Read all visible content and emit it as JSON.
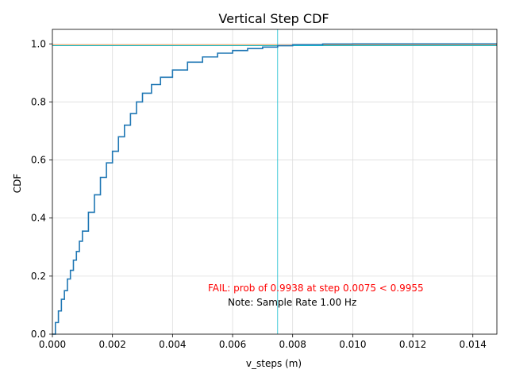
{
  "chart_data": {
    "type": "line",
    "title": "Vertical Step CDF",
    "xlabel": "v_steps (m)",
    "ylabel": "CDF",
    "xlim": [
      0,
      0.0148
    ],
    "ylim": [
      0,
      1.05
    ],
    "grid": true,
    "x_ticks": [
      0,
      0.002,
      0.004,
      0.006,
      0.008,
      0.01,
      0.012,
      0.014
    ],
    "x_tick_labels": [
      "0.000",
      "0.002",
      "0.004",
      "0.006",
      "0.008",
      "0.010",
      "0.012",
      "0.014"
    ],
    "y_ticks": [
      0,
      0.2,
      0.4,
      0.6,
      0.8,
      1.0
    ],
    "y_tick_labels": [
      "0.0",
      "0.2",
      "0.4",
      "0.6",
      "0.8",
      "1.0"
    ],
    "series": [
      {
        "color": "#1f77b4",
        "style": "step",
        "x": [
          0,
          0.0001,
          0.0002,
          0.0003,
          0.0004,
          0.0005,
          0.0006,
          0.0007,
          0.0008,
          0.0009,
          0.001,
          0.0012,
          0.0014,
          0.0016,
          0.0018,
          0.002,
          0.0022,
          0.0024,
          0.0026,
          0.0028,
          0.003,
          0.0033,
          0.0036,
          0.004,
          0.0045,
          0.005,
          0.0055,
          0.006,
          0.0065,
          0.007,
          0.0075,
          0.008,
          0.009,
          0.01,
          0.011,
          0.012,
          0.013,
          0.014,
          0.0148
        ],
        "y": [
          0.0,
          0.04,
          0.08,
          0.12,
          0.15,
          0.19,
          0.22,
          0.255,
          0.285,
          0.32,
          0.355,
          0.42,
          0.48,
          0.54,
          0.59,
          0.63,
          0.68,
          0.72,
          0.76,
          0.8,
          0.83,
          0.86,
          0.885,
          0.91,
          0.937,
          0.955,
          0.968,
          0.977,
          0.984,
          0.989,
          0.9938,
          0.997,
          0.9995,
          1.0,
          1.0,
          1.0,
          1.0,
          1.0,
          1.0
        ]
      }
    ],
    "reference_lines": [
      {
        "orientation": "horizontal",
        "value": 0.9955,
        "color": "#ff7f0e"
      },
      {
        "orientation": "horizontal",
        "value": 0.9938,
        "color": "#17becf"
      },
      {
        "orientation": "vertical",
        "value": 0.0075,
        "color": "#17becf"
      }
    ],
    "annotations": [
      {
        "text": "FAIL: prob of 0.9938 at step 0.0075 < 0.9955",
        "color": "#ff0000"
      },
      {
        "text": "Note: Sample Rate 1.00 Hz",
        "color": "#000000"
      }
    ]
  }
}
